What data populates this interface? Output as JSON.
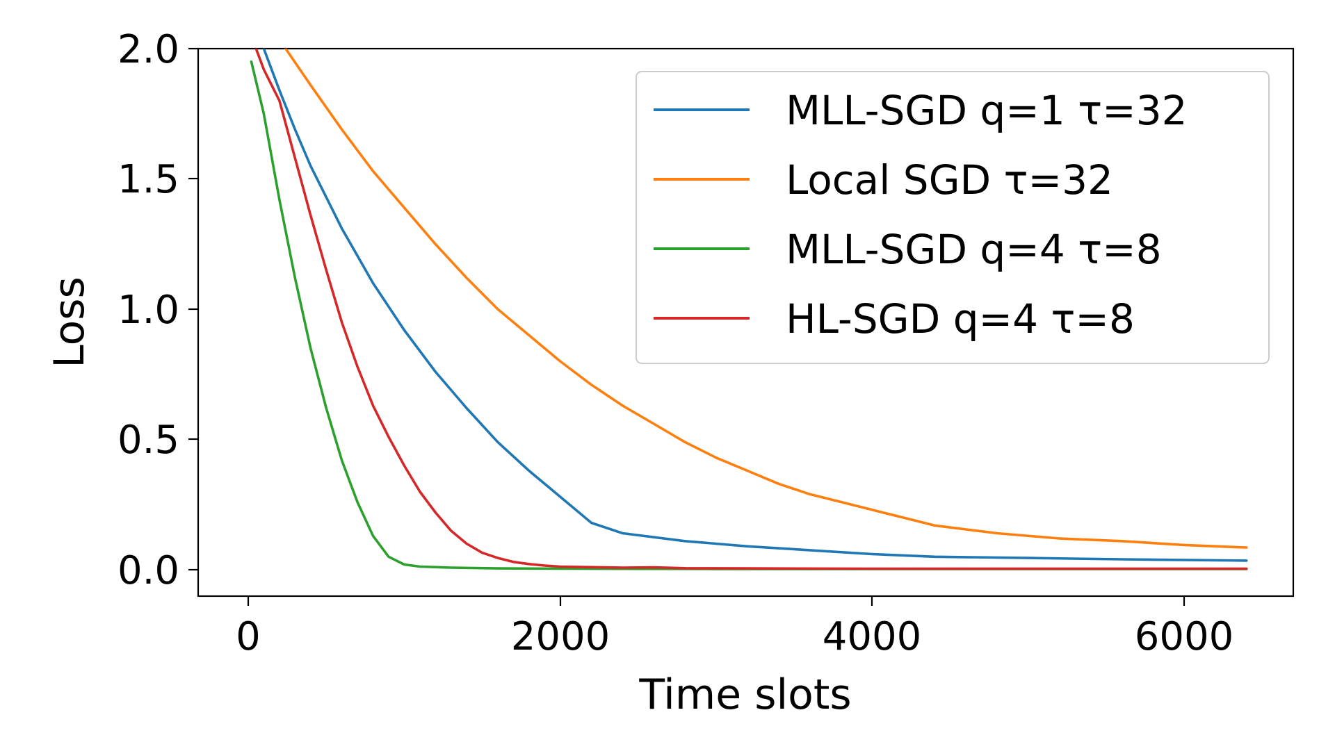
{
  "chart_data": {
    "type": "line",
    "title": "",
    "xlabel": "Time slots",
    "ylabel": "Loss",
    "xlim": [
      -320,
      6720
    ],
    "ylim": [
      -0.1,
      2.0
    ],
    "xticks": [
      0,
      2000,
      4000,
      6000
    ],
    "xtick_labels": [
      "0",
      "2000",
      "4000",
      "6000"
    ],
    "yticks": [
      0.0,
      0.5,
      1.0,
      1.5,
      2.0
    ],
    "ytick_labels": [
      "0.0",
      "0.5",
      "1.0",
      "1.5",
      "2.0"
    ],
    "grid": false,
    "legend_position": "top-right",
    "series": [
      {
        "name": "MLL-SGD q=1 τ=32",
        "color": "#1f77b4",
        "x": [
          100,
          200,
          300,
          400,
          500,
          600,
          800,
          1000,
          1200,
          1400,
          1600,
          1800,
          2000,
          2200,
          2400,
          2800,
          3200,
          3600,
          4000,
          4400,
          5000,
          5600,
          6400
        ],
        "y": [
          2.0,
          1.84,
          1.69,
          1.55,
          1.43,
          1.31,
          1.1,
          0.92,
          0.76,
          0.62,
          0.49,
          0.38,
          0.28,
          0.18,
          0.14,
          0.11,
          0.09,
          0.075,
          0.06,
          0.05,
          0.045,
          0.04,
          0.035
        ]
      },
      {
        "name": "Local SGD τ=32",
        "color": "#ff7f0e",
        "x": [
          240,
          400,
          600,
          800,
          1000,
          1200,
          1400,
          1600,
          1800,
          2000,
          2200,
          2400,
          2600,
          2800,
          3000,
          3200,
          3400,
          3600,
          3800,
          4000,
          4200,
          4400,
          4800,
          5200,
          5600,
          6000,
          6400
        ],
        "y": [
          2.0,
          1.86,
          1.69,
          1.53,
          1.39,
          1.25,
          1.12,
          1.0,
          0.9,
          0.8,
          0.71,
          0.63,
          0.56,
          0.49,
          0.43,
          0.38,
          0.33,
          0.29,
          0.26,
          0.23,
          0.2,
          0.17,
          0.14,
          0.12,
          0.11,
          0.095,
          0.085
        ]
      },
      {
        "name": "MLL-SGD q=4 τ=8",
        "color": "#2ca02c",
        "x": [
          20,
          100,
          200,
          300,
          400,
          500,
          600,
          700,
          800,
          900,
          1000,
          1100,
          1300,
          1600,
          2000,
          3000,
          4000,
          5000,
          6400
        ],
        "y": [
          1.95,
          1.75,
          1.42,
          1.12,
          0.85,
          0.62,
          0.42,
          0.26,
          0.13,
          0.05,
          0.02,
          0.012,
          0.008,
          0.005,
          0.004,
          0.003,
          0.003,
          0.003,
          0.003
        ],
        "x_start": 20
      },
      {
        "name": "HL-SGD q=4 τ=8",
        "color": "#d62728",
        "x": [
          50,
          100,
          200,
          300,
          400,
          500,
          600,
          700,
          800,
          900,
          1000,
          1100,
          1200,
          1300,
          1400,
          1500,
          1600,
          1700,
          1800,
          1900,
          2000,
          2200,
          2400,
          2600,
          2800,
          3200,
          4000,
          5000,
          6400
        ],
        "y": [
          2.0,
          1.92,
          1.8,
          1.58,
          1.36,
          1.15,
          0.95,
          0.78,
          0.63,
          0.51,
          0.4,
          0.3,
          0.22,
          0.15,
          0.1,
          0.065,
          0.045,
          0.03,
          0.022,
          0.016,
          0.012,
          0.01,
          0.008,
          0.009,
          0.006,
          0.005,
          0.004,
          0.004,
          0.004
        ]
      }
    ]
  }
}
